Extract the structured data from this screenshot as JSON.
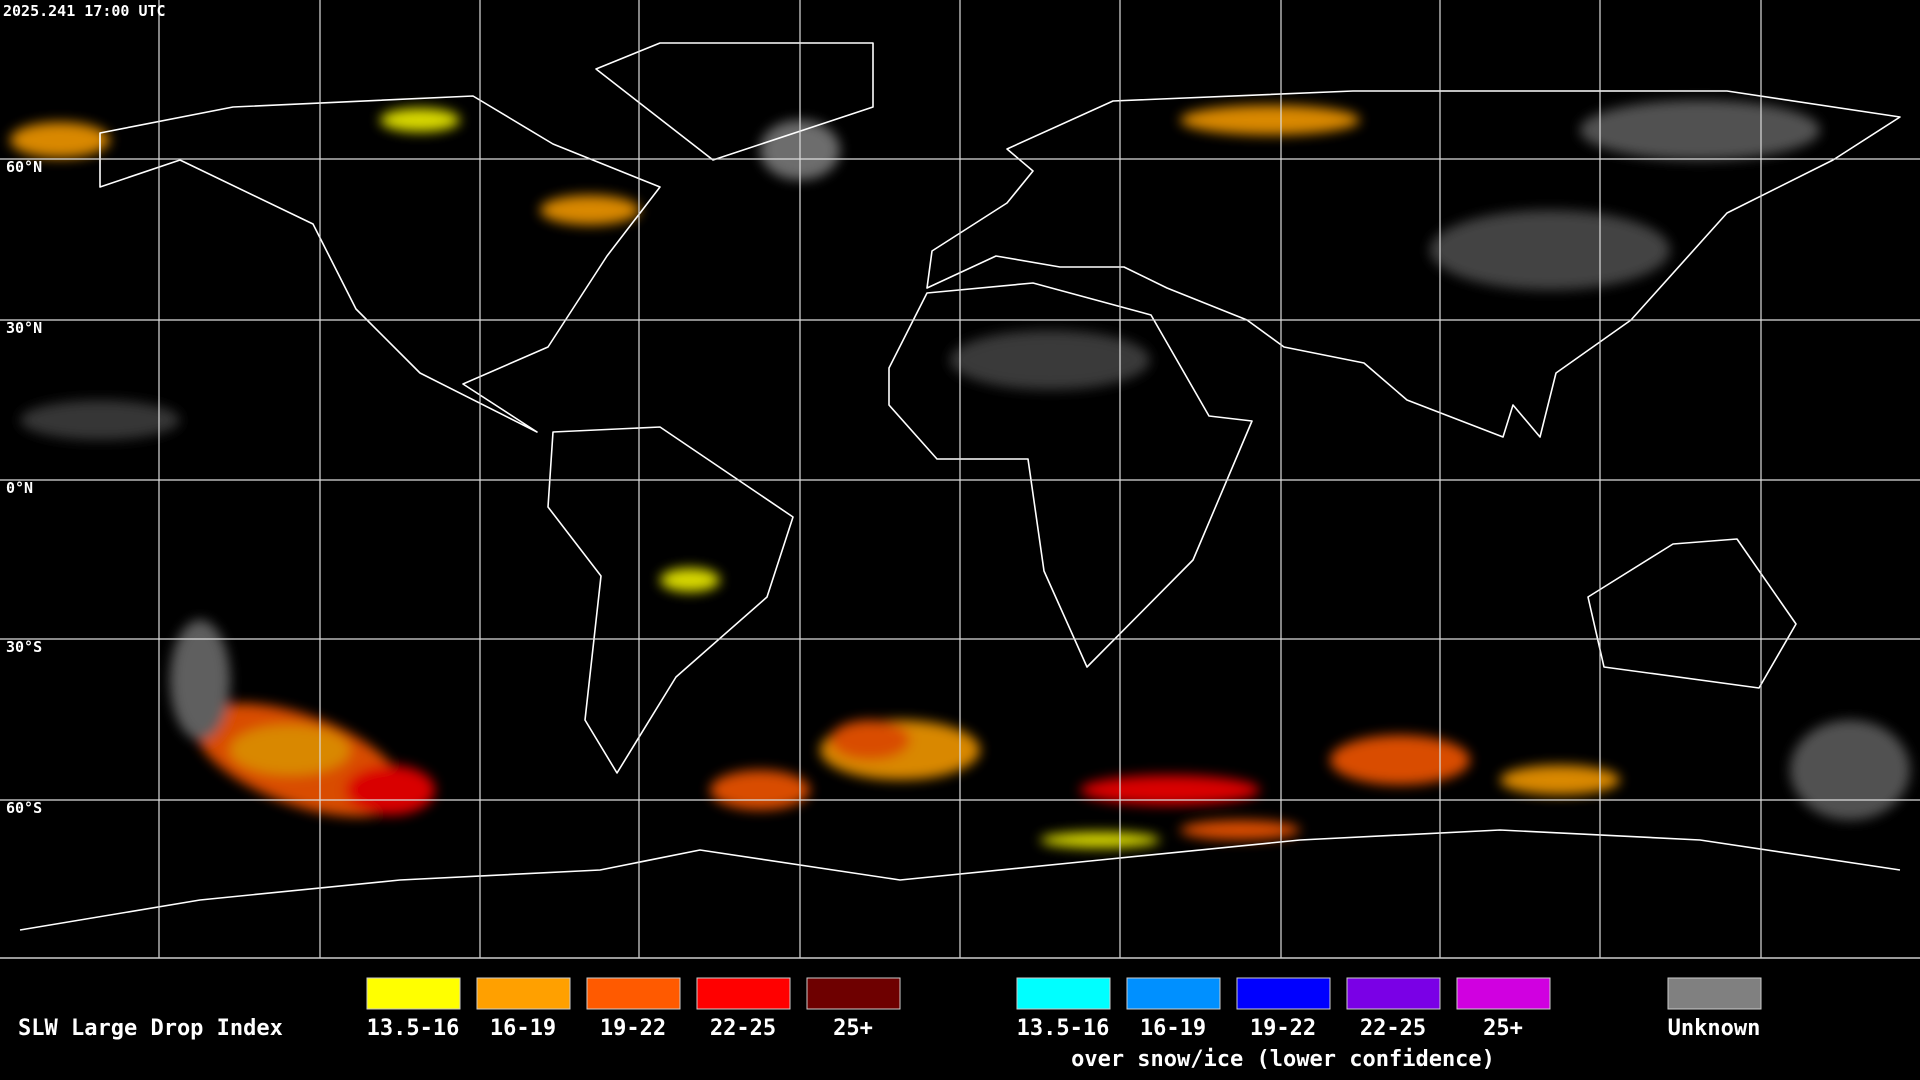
{
  "header": {
    "timestamp": "2025.241 17:00 UTC"
  },
  "latitude_labels": [
    "60°N",
    "30°N",
    "0°N",
    "30°S",
    "60°S"
  ],
  "legend": {
    "title": "SLW Large Drop Index",
    "items": [
      {
        "label": "13.5-16",
        "color": "#ffff00"
      },
      {
        "label": "16-19",
        "color": "#ffa000"
      },
      {
        "label": "19-22",
        "color": "#ff5a00"
      },
      {
        "label": "22-25",
        "color": "#ff0000"
      },
      {
        "label": "25+",
        "color": "#6e0000"
      }
    ],
    "snow_items": [
      {
        "label": "13.5-16",
        "color": "#00ffff"
      },
      {
        "label": "16-19",
        "color": "#0090ff"
      },
      {
        "label": "19-22",
        "color": "#0000ff"
      },
      {
        "label": "22-25",
        "color": "#7a00e6"
      },
      {
        "label": "25+",
        "color": "#d000e0"
      }
    ],
    "snow_note": "over snow/ice (lower confidence)",
    "unknown": {
      "label": "Unknown",
      "color": "#808080"
    }
  }
}
